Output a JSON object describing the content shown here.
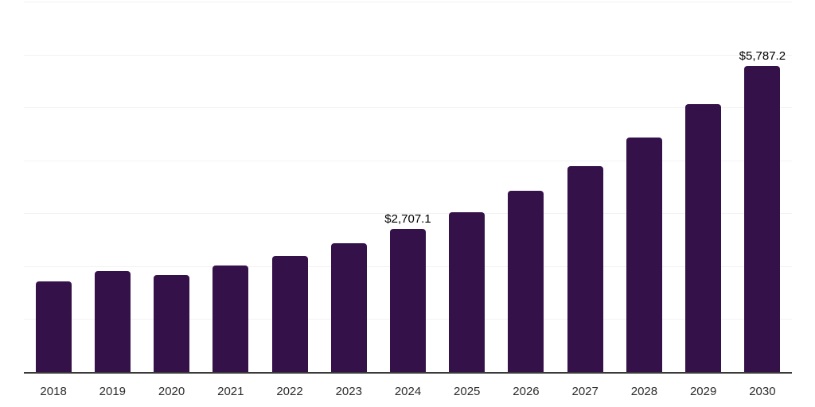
{
  "chart_data": {
    "type": "bar",
    "title": "",
    "xlabel": "",
    "ylabel": "",
    "categories": [
      "2018",
      "2019",
      "2020",
      "2021",
      "2022",
      "2023",
      "2024",
      "2025",
      "2026",
      "2027",
      "2028",
      "2029",
      "2030"
    ],
    "values": [
      1720,
      1912,
      1828,
      2013,
      2190,
      2438,
      2707.1,
      3025,
      3425,
      3890,
      4428,
      5066,
      5787.2
    ],
    "point_labels": [
      {
        "category": "2024",
        "text": "$2,707.1"
      },
      {
        "category": "2030",
        "text": "$5,787.2"
      }
    ],
    "ylim": [
      0,
      7000
    ],
    "grid_step": 1000,
    "grid": "horizontal-only",
    "legend": "none",
    "y_tick_labels_visible": false,
    "colors": {
      "bar": "#351149",
      "grid": "#F2F2F2",
      "axis": "#3A3A3A",
      "value_label": "#000000",
      "tick_label": "#2D2D2D",
      "background": "#FFFFFF"
    }
  }
}
